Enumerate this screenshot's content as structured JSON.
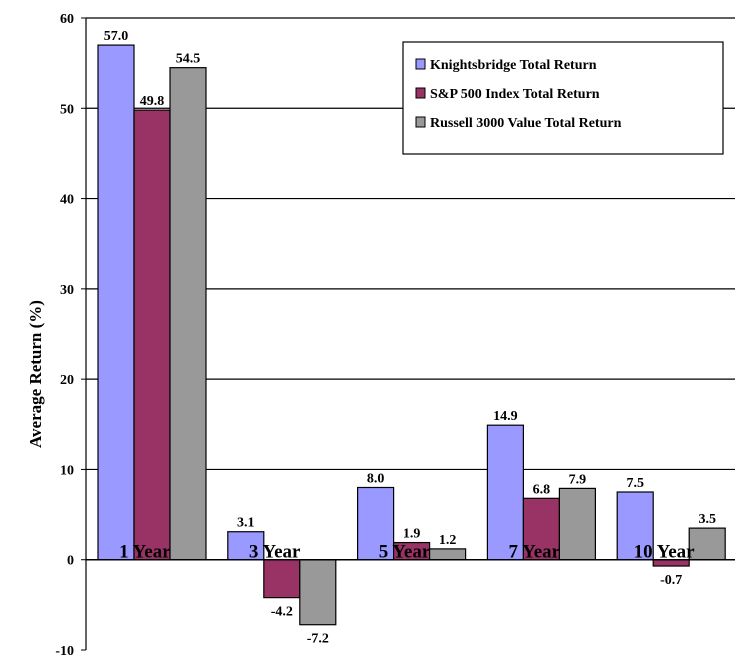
{
  "chart_data": {
    "type": "bar",
    "title": "",
    "xlabel": "",
    "ylabel": "Average Return (%)",
    "ylim": [
      -10,
      60
    ],
    "yticks": [
      "60",
      "50",
      "40",
      "30",
      "20",
      "10",
      "0",
      "-10"
    ],
    "categories": [
      "1 Year",
      "3 Year",
      "5 Year",
      "7 Year",
      "10 Year"
    ],
    "series": [
      {
        "name": "Knightsbridge Total Return",
        "color": "#9999ff",
        "values": [
          57.0,
          3.1,
          8.0,
          14.9,
          7.5
        ],
        "labels": [
          "57.0",
          "3.1",
          "8.0",
          "14.9",
          "7.5"
        ]
      },
      {
        "name": "S&P 500 Index Total Return",
        "color": "#993366",
        "values": [
          49.8,
          -4.2,
          1.9,
          6.8,
          -0.7
        ],
        "labels": [
          "49.8",
          "-4.2",
          "1.9",
          "6.8",
          "-0.7"
        ]
      },
      {
        "name": "Russell 3000 Value Total Return",
        "color": "#999999",
        "values": [
          54.5,
          -7.2,
          1.2,
          7.9,
          3.5
        ],
        "labels": [
          "54.5",
          "-7.2",
          "1.2",
          "7.9",
          "3.5"
        ]
      }
    ],
    "grid": true,
    "legend_position": "top-right"
  }
}
